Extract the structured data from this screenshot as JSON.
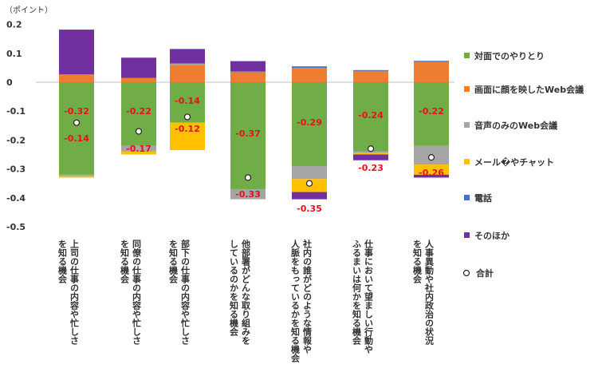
{
  "chart_data": {
    "type": "bar",
    "stacked": true,
    "unit_label": "（ポイント）",
    "title": "",
    "xlabel": "",
    "ylabel": "",
    "ylim": [
      -0.5,
      0.2
    ],
    "yticks": [
      "0.2",
      "0.1",
      "0",
      "-0.1",
      "-0.2",
      "-0.3",
      "-0.4",
      "-0.5"
    ],
    "grid": false,
    "legend_position": "right",
    "categories": [
      [
        "上司の仕事の内容や忙しさ",
        "を知る機会"
      ],
      [
        "同僚の仕事の内容や忙しさ",
        "を知る機会"
      ],
      [
        "部下の仕事の内容や忙しさ",
        "を知る機会"
      ],
      [
        "他部署がどんな取り組みを",
        "しているのかを知る機会"
      ],
      [
        "社内の誰がどのような情報や",
        "人脈をもっているかを知る機会"
      ],
      [
        "仕事において望ましい行動や",
        "ふるまいは何かを知る機会"
      ],
      [
        "人事異動や社内政治の状況",
        "を知る機会"
      ]
    ],
    "series": [
      {
        "name": "対面でのやりとり",
        "color": "#70ad47",
        "values": [
          -0.32,
          -0.22,
          -0.14,
          -0.37,
          -0.29,
          -0.24,
          -0.22
        ]
      },
      {
        "name": "画面に顔を映したWeb会議",
        "color": "#ed7d31",
        "values": [
          0.027,
          0.015,
          0.06,
          0.035,
          0.05,
          0.04,
          0.07
        ]
      },
      {
        "name": "音声のみのWeb会議",
        "color": "#a5a5a5",
        "values": [
          -0.005,
          -0.02,
          0.005,
          -0.035,
          -0.045,
          -0.005,
          -0.065
        ]
      },
      {
        "name": "メール�やチャット",
        "color": "#ffc000",
        "values": [
          -0.005,
          -0.01,
          -0.095,
          0.0,
          -0.045,
          -0.005,
          -0.035
        ]
      },
      {
        "name": "電話",
        "color": "#4472c4",
        "values": [
          0.0,
          0.0,
          0.0,
          0.003,
          0.005,
          0.002,
          0.004
        ]
      },
      {
        "name": "そのほか",
        "color": "#7030a0",
        "values": [
          0.155,
          0.07,
          0.05,
          0.035,
          -0.025,
          -0.02,
          -0.01
        ]
      }
    ],
    "total": {
      "name": "合計",
      "values": [
        -0.14,
        -0.17,
        -0.12,
        -0.33,
        -0.35,
        -0.23,
        -0.26
      ]
    },
    "data_labels": {
      "face_to_face": [
        "-0.32",
        "-0.22",
        "-0.14",
        "-0.37",
        "-0.29",
        "-0.24",
        "-0.22"
      ],
      "total": [
        "-0.14",
        "-0.17",
        "-0.12",
        "-0.33",
        "-0.35",
        "-0.23",
        "-0.26"
      ]
    }
  }
}
